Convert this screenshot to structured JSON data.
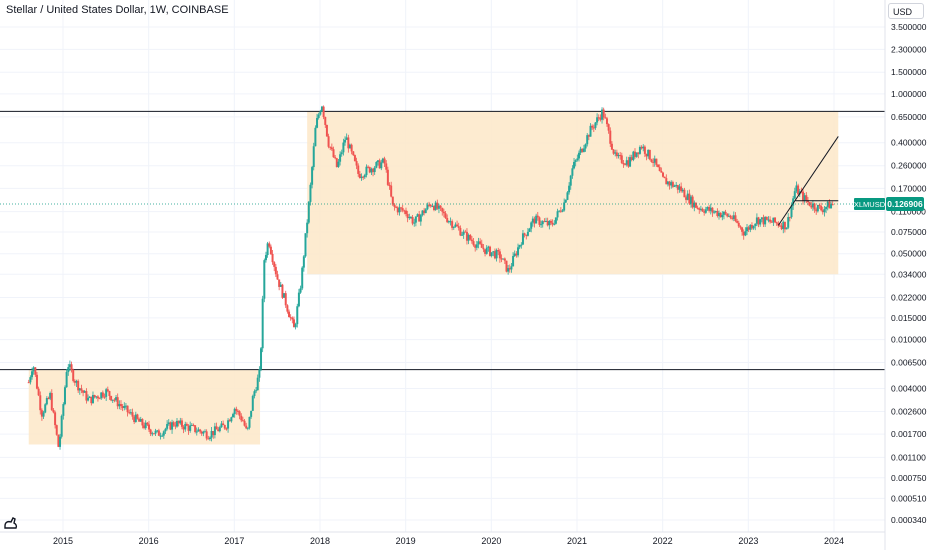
{
  "header": {
    "title": "Stellar / United States Dollar, 1W, COINBASE"
  },
  "price_axis": {
    "currency_button": "USD"
  },
  "ticker": {
    "symbol": "XLMUSD",
    "last_price": "0.126906",
    "color": "#089981"
  },
  "colors": {
    "up": "#26a69a",
    "down": "#ef5350",
    "range_fill": "#fde7c8",
    "level_line": "#131722"
  },
  "chart_data": {
    "type": "candlestick",
    "title": "Stellar / United States Dollar, 1W, COINBASE",
    "y_scale": "log",
    "y_ticks": [
      "3.500000",
      "2.300000",
      "1.500000",
      "1.000000",
      "0.650000",
      "0.400000",
      "0.260000",
      "0.170000",
      "0.110000",
      "0.075000",
      "0.050000",
      "0.034000",
      "0.022000",
      "0.015000",
      "0.010000",
      "0.006500",
      "0.004000",
      "0.002600",
      "0.001700",
      "0.001100",
      "0.000750",
      "0.000510",
      "0.000340"
    ],
    "x_ticks": [
      "2015",
      "2016",
      "2017",
      "2018",
      "2019",
      "2020",
      "2021",
      "2022",
      "2023",
      "2024"
    ],
    "horizontal_levels": [
      0.72,
      0.0057
    ],
    "ranges": [
      {
        "start": 2014.6,
        "end": 2017.3,
        "high": 0.0057,
        "low": 0.0014
      },
      {
        "start": 2017.85,
        "end": 2024.05,
        "high": 0.72,
        "low": 0.034
      }
    ],
    "trend_line": {
      "start": [
        2023.35,
        0.085
      ],
      "end": [
        2024.05,
        0.45
      ]
    },
    "consolidation_line": {
      "start": [
        2023.55,
        0.135
      ],
      "end": [
        2024.05,
        0.135
      ]
    },
    "price_path": [
      [
        2014.6,
        0.0045
      ],
      [
        2014.65,
        0.0065
      ],
      [
        2014.75,
        0.0025
      ],
      [
        2014.85,
        0.0035
      ],
      [
        2014.95,
        0.0013
      ],
      [
        2015.0,
        0.0028
      ],
      [
        2015.05,
        0.0065
      ],
      [
        2015.15,
        0.0045
      ],
      [
        2015.3,
        0.0032
      ],
      [
        2015.5,
        0.0038
      ],
      [
        2015.7,
        0.0028
      ],
      [
        2015.9,
        0.0021
      ],
      [
        2016.1,
        0.0017
      ],
      [
        2016.3,
        0.0021
      ],
      [
        2016.5,
        0.0019
      ],
      [
        2016.7,
        0.0017
      ],
      [
        2016.9,
        0.002
      ],
      [
        2017.0,
        0.0028
      ],
      [
        2017.1,
        0.0022
      ],
      [
        2017.15,
        0.0017
      ],
      [
        2017.22,
        0.0035
      ],
      [
        2017.3,
        0.0055
      ],
      [
        2017.35,
        0.045
      ],
      [
        2017.4,
        0.065
      ],
      [
        2017.5,
        0.032
      ],
      [
        2017.6,
        0.02
      ],
      [
        2017.7,
        0.012
      ],
      [
        2017.78,
        0.03
      ],
      [
        2017.88,
        0.15
      ],
      [
        2017.95,
        0.55
      ],
      [
        2018.02,
        0.85
      ],
      [
        2018.1,
        0.4
      ],
      [
        2018.2,
        0.25
      ],
      [
        2018.3,
        0.45
      ],
      [
        2018.45,
        0.22
      ],
      [
        2018.6,
        0.25
      ],
      [
        2018.75,
        0.28
      ],
      [
        2018.85,
        0.12
      ],
      [
        2019.0,
        0.11
      ],
      [
        2019.1,
        0.09
      ],
      [
        2019.3,
        0.13
      ],
      [
        2019.5,
        0.095
      ],
      [
        2019.7,
        0.07
      ],
      [
        2019.9,
        0.055
      ],
      [
        2020.1,
        0.048
      ],
      [
        2020.2,
        0.036
      ],
      [
        2020.35,
        0.065
      ],
      [
        2020.5,
        0.095
      ],
      [
        2020.7,
        0.085
      ],
      [
        2020.85,
        0.13
      ],
      [
        2020.95,
        0.25
      ],
      [
        2021.05,
        0.35
      ],
      [
        2021.15,
        0.5
      ],
      [
        2021.3,
        0.72
      ],
      [
        2021.45,
        0.3
      ],
      [
        2021.6,
        0.28
      ],
      [
        2021.75,
        0.38
      ],
      [
        2021.9,
        0.28
      ],
      [
        2022.0,
        0.2
      ],
      [
        2022.2,
        0.17
      ],
      [
        2022.4,
        0.12
      ],
      [
        2022.6,
        0.11
      ],
      [
        2022.8,
        0.1
      ],
      [
        2022.95,
        0.075
      ],
      [
        2023.1,
        0.095
      ],
      [
        2023.3,
        0.09
      ],
      [
        2023.45,
        0.085
      ],
      [
        2023.55,
        0.17
      ],
      [
        2023.7,
        0.13
      ],
      [
        2023.85,
        0.115
      ],
      [
        2023.95,
        0.125
      ],
      [
        2024.0,
        0.127
      ]
    ],
    "last_value": 0.126906,
    "grid": true,
    "legend": "none"
  }
}
